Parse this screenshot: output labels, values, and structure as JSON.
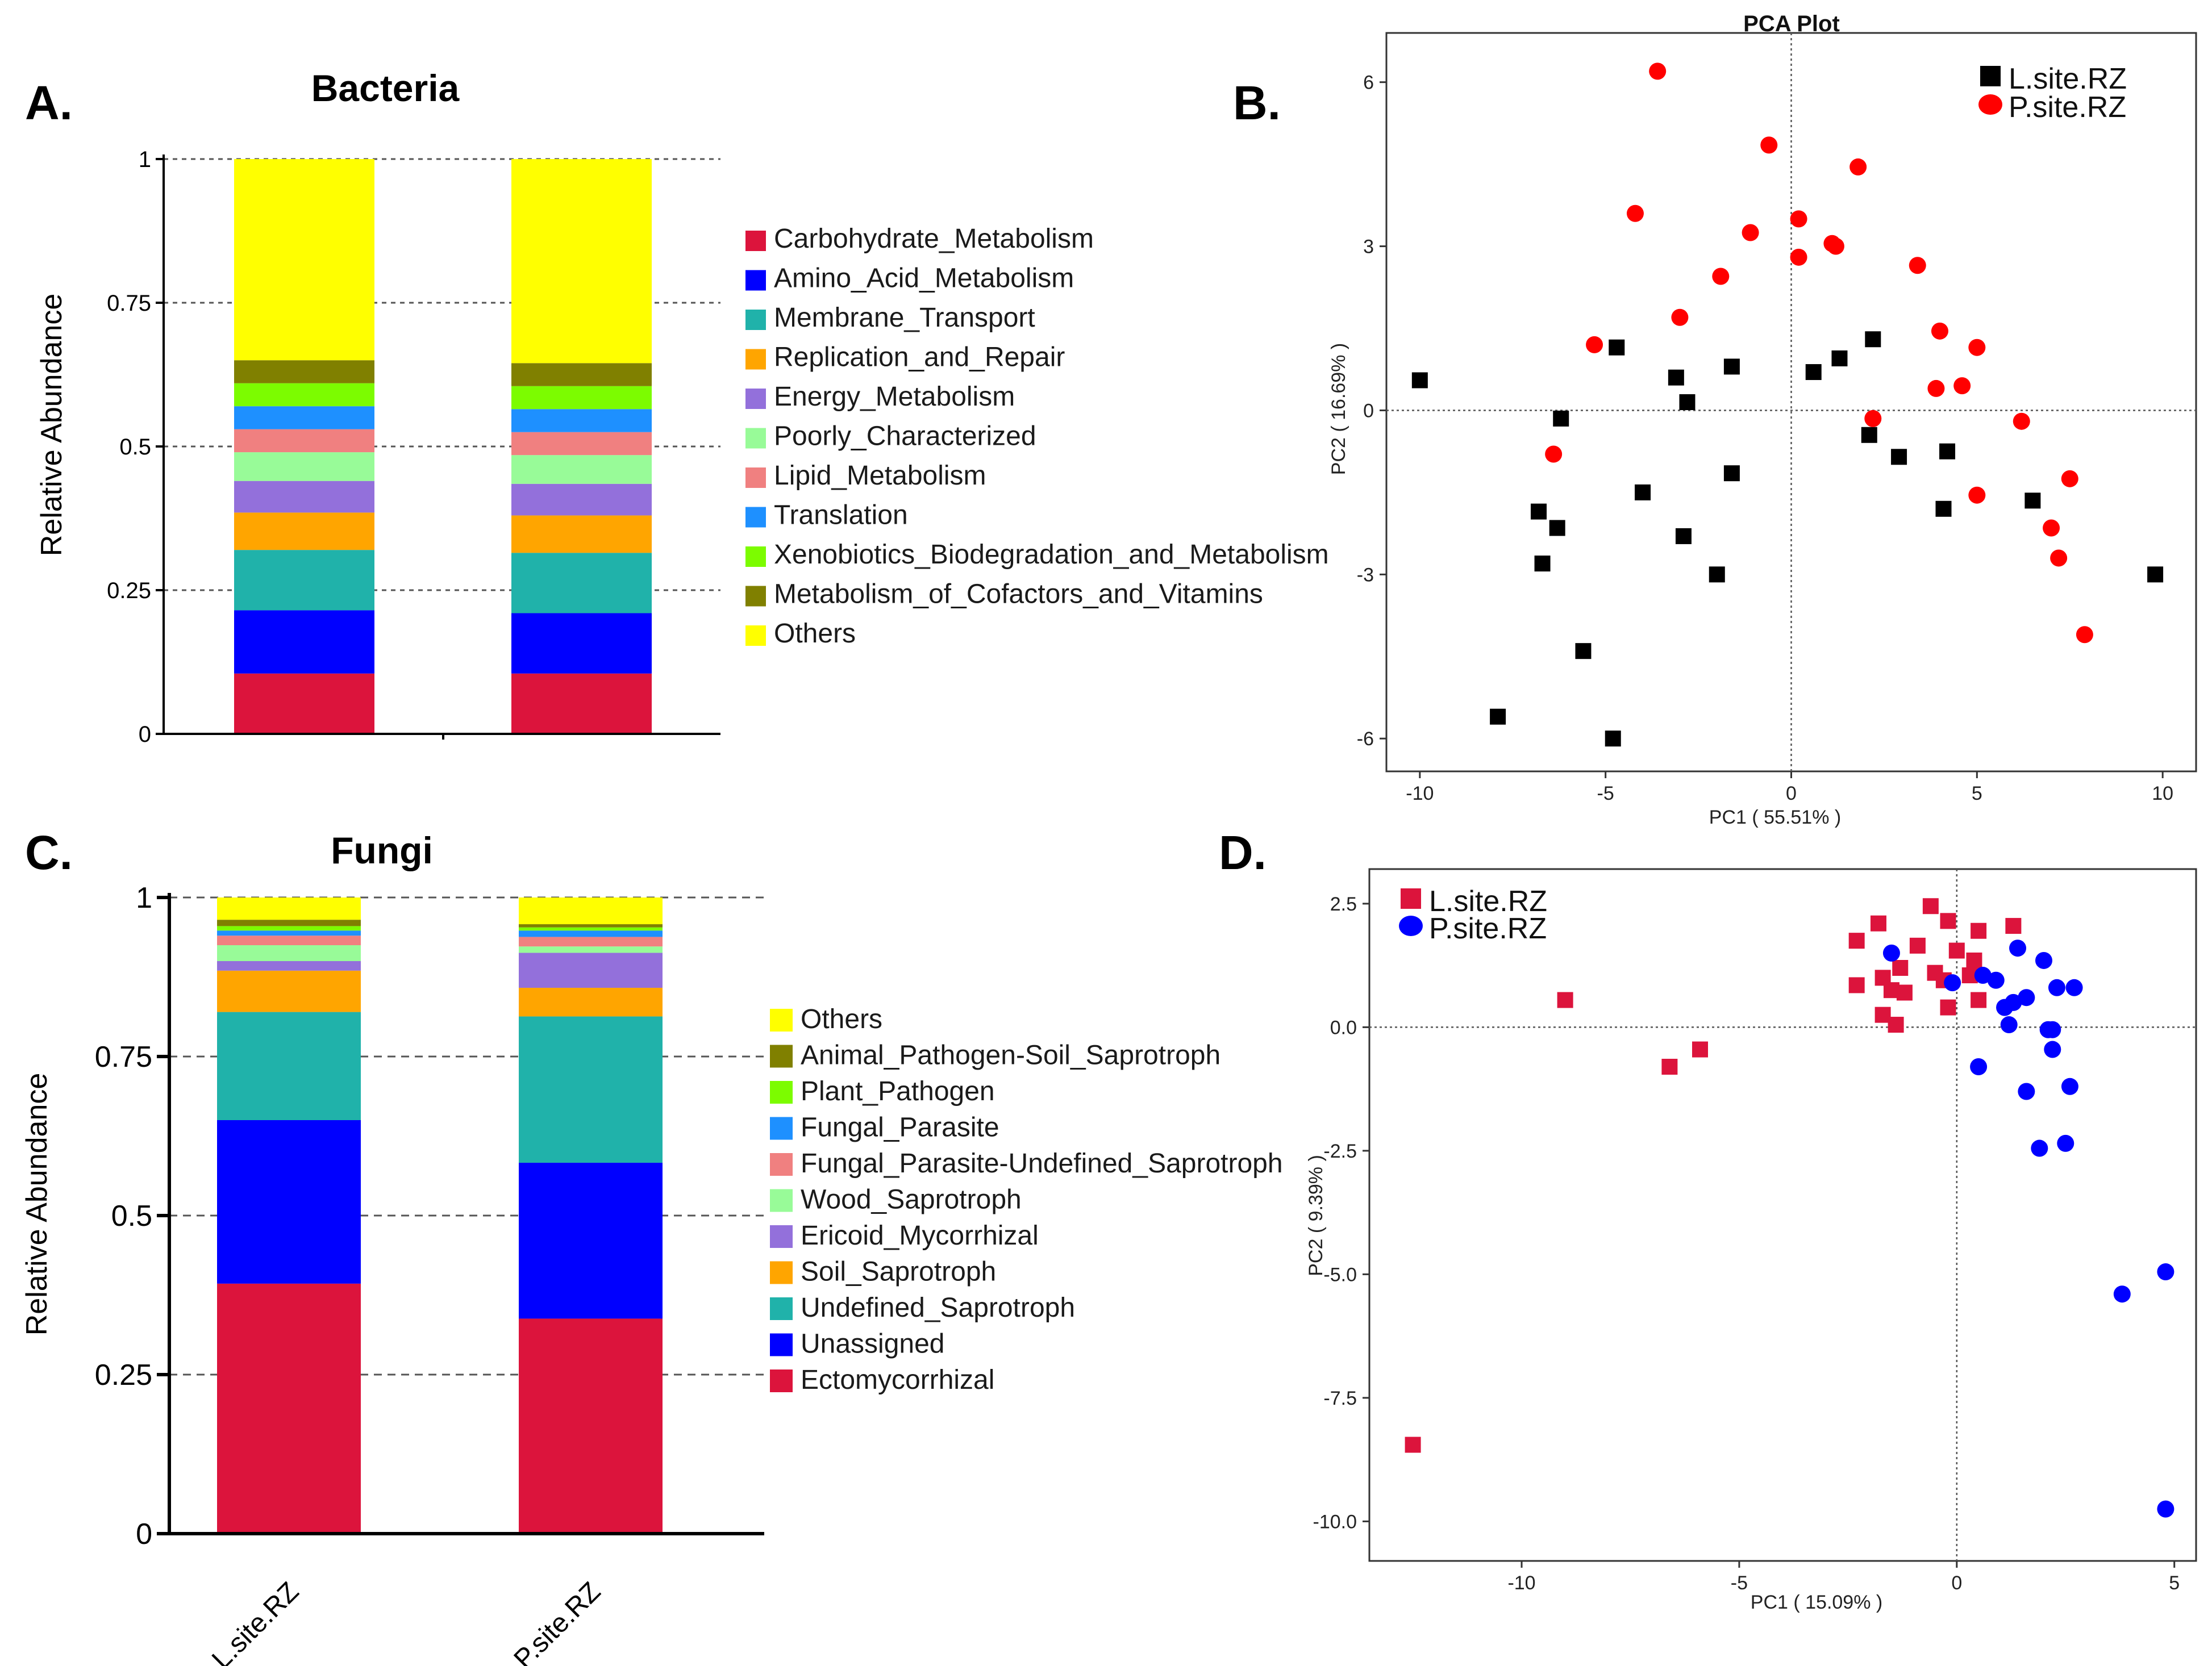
{
  "panels": {
    "A": {
      "letter": "A."
    },
    "B": {
      "letter": "B."
    },
    "C": {
      "letter": "C."
    },
    "D": {
      "letter": "D."
    }
  },
  "chart_data": [
    {
      "id": "A",
      "type": "bar",
      "stacked": true,
      "title": "Bacteria",
      "xlabel": "",
      "ylabel": "Relative Abundance",
      "ylim": [
        0,
        1
      ],
      "yticks": [
        0,
        0.25,
        0.5,
        0.75,
        1
      ],
      "ytick_labels": [
        "0",
        "0.25",
        "0.5",
        "0.75",
        "1"
      ],
      "categories": [
        "L.site.RZ",
        "P.site.RZ"
      ],
      "show_category_labels": false,
      "grid": "dashed-horizontal",
      "series": [
        {
          "name": "Carbohydrate_Metabolism",
          "color": "#dc143c",
          "values": [
            0.105,
            0.105
          ]
        },
        {
          "name": "Amino_Acid_Metabolism",
          "color": "#0000ff",
          "values": [
            0.11,
            0.105
          ]
        },
        {
          "name": "Membrane_Transport",
          "color": "#20b2aa",
          "values": [
            0.105,
            0.105
          ]
        },
        {
          "name": "Replication_and_Repair",
          "color": "#ffa500",
          "values": [
            0.065,
            0.065
          ]
        },
        {
          "name": "Energy_Metabolism",
          "color": "#9370db",
          "values": [
            0.055,
            0.055
          ]
        },
        {
          "name": "Poorly_Characterized",
          "color": "#98fb98",
          "values": [
            0.05,
            0.05
          ]
        },
        {
          "name": "Lipid_Metabolism",
          "color": "#f08080",
          "values": [
            0.04,
            0.04
          ]
        },
        {
          "name": "Translation",
          "color": "#1e90ff",
          "values": [
            0.04,
            0.04
          ]
        },
        {
          "name": "Xenobiotics_Biodegradation_and_Metabolism",
          "color": "#7cfc00",
          "values": [
            0.04,
            0.04
          ]
        },
        {
          "name": "Metabolism_of_Cofactors_and_Vitamins",
          "color": "#808000",
          "values": [
            0.04,
            0.04
          ]
        },
        {
          "name": "Others",
          "color": "#ffff00",
          "values": [
            0.35,
            0.355
          ]
        }
      ],
      "legend": "right"
    },
    {
      "id": "B",
      "type": "scatter",
      "title": "PCA Plot",
      "xlabel": "PC1 ( 55.51% )",
      "ylabel": "PC2 ( 16.69% )",
      "xlim": [
        -10.9,
        10.9
      ],
      "ylim": [
        -6.6,
        6.9
      ],
      "xticks": [
        -10,
        -5,
        0,
        5,
        10
      ],
      "yticks": [
        -6,
        -3,
        0,
        3,
        6
      ],
      "reference_lines": "dotted x=0, y=0",
      "legend": "top-right",
      "series": [
        {
          "name": "L.site.RZ",
          "marker": "square",
          "color": "#000000",
          "points": [
            [
              -10,
              0.55
            ],
            [
              -7.9,
              -5.6
            ],
            [
              -6.8,
              -1.85
            ],
            [
              -6.7,
              -2.8
            ],
            [
              -6.3,
              -2.15
            ],
            [
              -6.2,
              -0.15
            ],
            [
              -5.6,
              -4.4
            ],
            [
              -4.8,
              -6
            ],
            [
              -4.7,
              1.15
            ],
            [
              -4.0,
              -1.5
            ],
            [
              -3.1,
              0.6
            ],
            [
              -2.9,
              -2.3
            ],
            [
              -2.8,
              0.15
            ],
            [
              -2.0,
              -3
            ],
            [
              -1.6,
              0.8
            ],
            [
              -1.6,
              -1.15
            ],
            [
              0.6,
              0.7
            ],
            [
              1.3,
              0.95
            ],
            [
              2.1,
              -0.45
            ],
            [
              2.2,
              1.3
            ],
            [
              2.9,
              -0.85
            ],
            [
              4.1,
              -1.8
            ],
            [
              4.2,
              -0.75
            ],
            [
              6.5,
              -1.65
            ],
            [
              9.8,
              -3
            ]
          ]
        },
        {
          "name": "P.site.RZ",
          "marker": "circle",
          "color": "#ff0000",
          "points": [
            [
              -3.6,
              6.2
            ],
            [
              -0.6,
              4.85
            ],
            [
              1.8,
              4.45
            ],
            [
              -4.2,
              3.6
            ],
            [
              0.2,
              3.5
            ],
            [
              -1.1,
              3.25
            ],
            [
              1.1,
              3.05
            ],
            [
              1.2,
              3.0
            ],
            [
              0.2,
              2.8
            ],
            [
              3.4,
              2.65
            ],
            [
              -1.9,
              2.45
            ],
            [
              -3.0,
              1.7
            ],
            [
              4.0,
              1.45
            ],
            [
              -5.3,
              1.2
            ],
            [
              5.0,
              1.15
            ],
            [
              4.6,
              0.45
            ],
            [
              3.9,
              0.4
            ],
            [
              2.2,
              -0.15
            ],
            [
              6.2,
              -0.2
            ],
            [
              -6.4,
              -0.8
            ],
            [
              5.0,
              -1.55
            ],
            [
              7.5,
              -1.25
            ],
            [
              7.0,
              -2.15
            ],
            [
              7.2,
              -2.7
            ],
            [
              7.9,
              -4.1
            ]
          ]
        }
      ]
    },
    {
      "id": "C",
      "type": "bar",
      "stacked": true,
      "title": "Fungi",
      "xlabel": "",
      "ylabel": "Relative Abundance",
      "ylim": [
        0,
        1
      ],
      "yticks": [
        0,
        0.25,
        0.5,
        0.75,
        1
      ],
      "ytick_labels": [
        "0",
        "0.25",
        "0.5",
        "0.75",
        "1"
      ],
      "categories": [
        "L.site.RZ",
        "P.site.RZ"
      ],
      "show_category_labels": true,
      "grid": "dashed-horizontal",
      "series": [
        {
          "name": "Ectomycorrhizal",
          "color": "#dc143c",
          "values": [
            0.393,
            0.338
          ]
        },
        {
          "name": "Unassigned",
          "color": "#0000ff",
          "values": [
            0.257,
            0.245
          ]
        },
        {
          "name": "Undefined_Saprotroph",
          "color": "#20b2aa",
          "values": [
            0.17,
            0.23
          ]
        },
        {
          "name": "Soil_Saprotroph",
          "color": "#ffa500",
          "values": [
            0.065,
            0.045
          ]
        },
        {
          "name": "Ericoid_Mycorrhizal",
          "color": "#9370db",
          "values": [
            0.015,
            0.055
          ]
        },
        {
          "name": "Wood_Saprotroph",
          "color": "#98fb98",
          "values": [
            0.025,
            0.01
          ]
        },
        {
          "name": "Fungal_Parasite-Undefined_Saprotroph",
          "color": "#f08080",
          "values": [
            0.015,
            0.015
          ]
        },
        {
          "name": "Fungal_Parasite",
          "color": "#1e90ff",
          "values": [
            0.008,
            0.01
          ]
        },
        {
          "name": "Plant_Pathogen",
          "color": "#7cfc00",
          "values": [
            0.007,
            0.005
          ]
        },
        {
          "name": "Animal_Pathogen-Soil_Saprotroph",
          "color": "#808000",
          "values": [
            0.01,
            0.005
          ]
        },
        {
          "name": "Others",
          "color": "#ffff00",
          "values": [
            0.035,
            0.042
          ]
        }
      ],
      "legend": "right"
    },
    {
      "id": "D",
      "type": "scatter",
      "title": "",
      "xlabel": "PC1 ( 15.09% )",
      "ylabel": "PC2 ( 9.39% )",
      "xlim": [
        -13.5,
        5.5
      ],
      "ylim": [
        -10.8,
        3.2
      ],
      "xticks": [
        -10,
        -5,
        0,
        5
      ],
      "yticks": [
        2.5,
        0.0,
        -2.5,
        -5.0,
        -7.5,
        -10.0
      ],
      "ytick_labels": [
        "2.5",
        "0.0",
        "-2.5",
        "-5.0",
        "-7.5",
        "-10.0"
      ],
      "reference_lines": "dotted x=0, y=0",
      "legend": "top-left",
      "series": [
        {
          "name": "L.site.RZ",
          "marker": "square",
          "color": "#dc143c",
          "points": [
            [
              -12.5,
              -8.45
            ],
            [
              -9.0,
              0.55
            ],
            [
              -6.6,
              -0.8
            ],
            [
              -5.9,
              -0.45
            ],
            [
              -2.3,
              1.75
            ],
            [
              -2.3,
              0.85
            ],
            [
              -1.8,
              2.1
            ],
            [
              -1.7,
              1.0
            ],
            [
              -1.7,
              0.25
            ],
            [
              -1.5,
              0.75
            ],
            [
              -1.4,
              0.05
            ],
            [
              -1.3,
              1.2
            ],
            [
              -1.2,
              0.7
            ],
            [
              -0.9,
              1.65
            ],
            [
              -0.6,
              2.45
            ],
            [
              -0.5,
              1.1
            ],
            [
              -0.3,
              0.95
            ],
            [
              -0.2,
              2.15
            ],
            [
              -0.2,
              0.4
            ],
            [
              0.0,
              1.55
            ],
            [
              0.3,
              1.05
            ],
            [
              0.4,
              1.35
            ],
            [
              0.5,
              1.95
            ],
            [
              0.5,
              0.55
            ],
            [
              1.3,
              2.05
            ]
          ]
        },
        {
          "name": "P.site.RZ",
          "marker": "circle",
          "color": "#0000ff",
          "points": [
            [
              -1.5,
              1.5
            ],
            [
              -0.1,
              0.9
            ],
            [
              0.6,
              1.05
            ],
            [
              0.9,
              0.95
            ],
            [
              1.1,
              0.4
            ],
            [
              1.3,
              0.5
            ],
            [
              1.4,
              1.6
            ],
            [
              1.6,
              0.6
            ],
            [
              1.2,
              0.05
            ],
            [
              2.0,
              1.35
            ],
            [
              2.1,
              -0.05
            ],
            [
              2.2,
              -0.05
            ],
            [
              2.2,
              -0.45
            ],
            [
              2.3,
              0.8
            ],
            [
              2.7,
              0.8
            ],
            [
              0.5,
              -0.8
            ],
            [
              1.6,
              -1.3
            ],
            [
              2.6,
              -1.2
            ],
            [
              1.9,
              -2.45
            ],
            [
              2.5,
              -2.35
            ],
            [
              3.8,
              -5.4
            ],
            [
              4.8,
              -4.95
            ],
            [
              4.8,
              -9.75
            ]
          ]
        }
      ]
    }
  ]
}
